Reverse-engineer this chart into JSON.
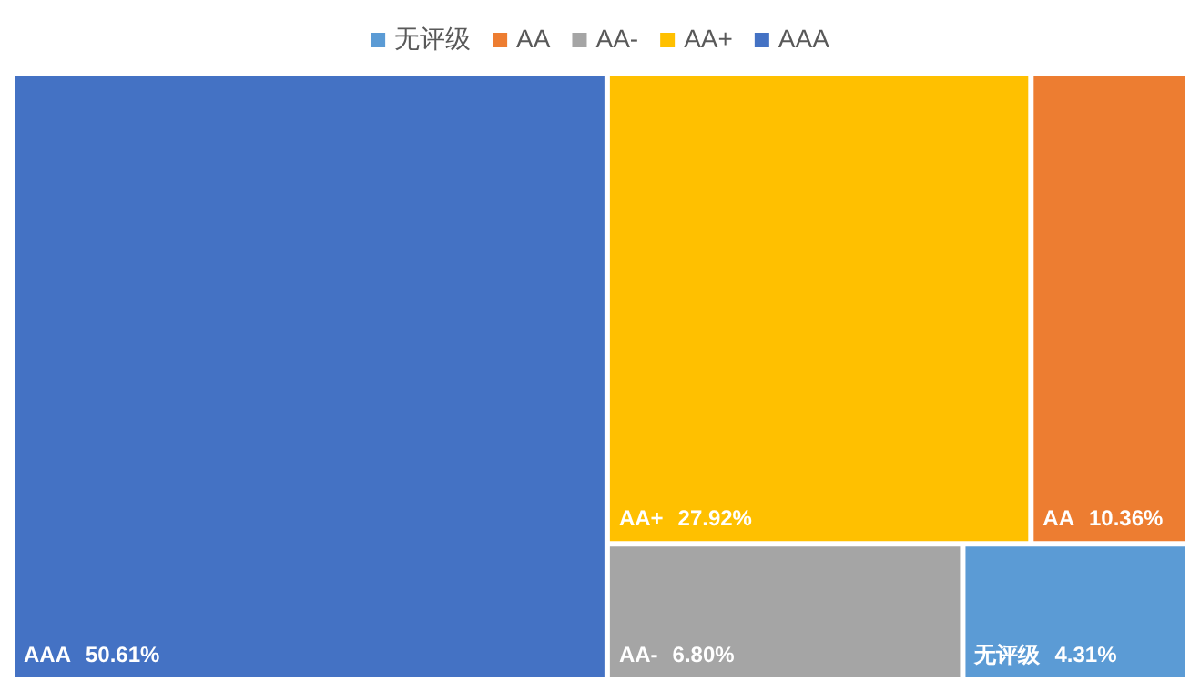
{
  "chart_data": {
    "type": "other",
    "legend": "top",
    "series": [
      {
        "name": "无评级",
        "color": "#5b9bd5",
        "values": [
          4.31
        ],
        "value_labels": [
          "4.31%"
        ]
      },
      {
        "name": "AA",
        "color": "#ed7d31",
        "values": [
          10.36
        ],
        "value_labels": [
          "10.36%"
        ]
      },
      {
        "name": "AA-",
        "color": "#a5a5a5",
        "values": [
          6.8
        ],
        "value_labels": [
          "6.80%"
        ]
      },
      {
        "name": "AA+",
        "color": "#ffc000",
        "values": [
          27.92
        ],
        "value_labels": [
          "27.92%"
        ]
      },
      {
        "name": "AAA",
        "color": "#4472c4",
        "values": [
          50.61
        ],
        "value_labels": [
          "50.61%"
        ]
      }
    ]
  }
}
